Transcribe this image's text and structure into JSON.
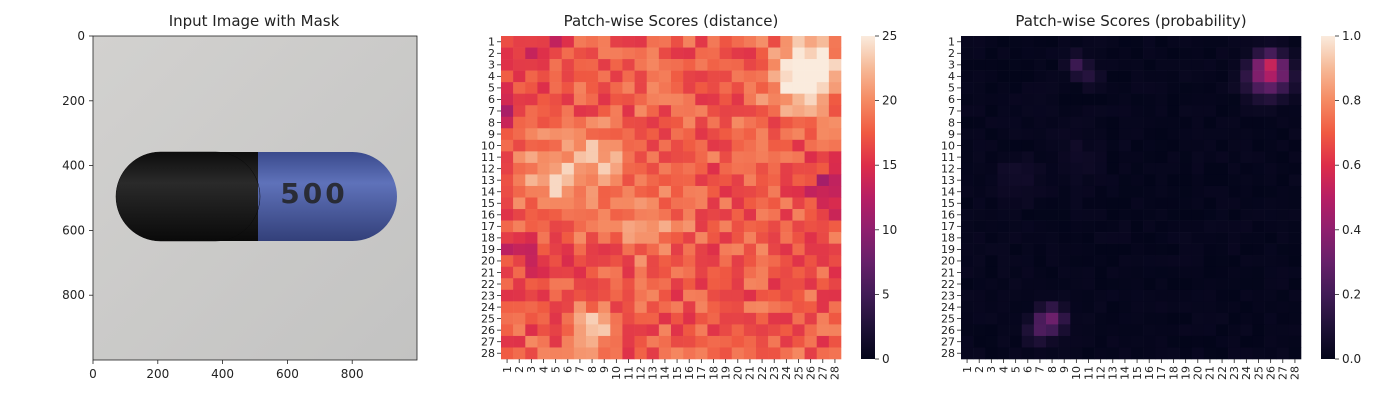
{
  "figure": {
    "panels": [
      {
        "title": "Input Image with Mask",
        "x_ticks": [
          "0",
          "200",
          "400",
          "600",
          "800"
        ],
        "y_ticks": [
          "0",
          "200",
          "400",
          "600",
          "800"
        ],
        "capsule": {
          "left_color": "#1a1a1a",
          "right_color": "#4b5fa6",
          "imprint": "500",
          "background": "#c9c9c6"
        }
      },
      {
        "title": "Patch-wise Scores (distance)",
        "colorbar_ticks": [
          "0",
          "5",
          "10",
          "15",
          "20",
          "25"
        ]
      },
      {
        "title": "Patch-wise Scores (probability)",
        "colorbar_ticks": [
          "0.0",
          "0.2",
          "0.4",
          "0.6",
          "0.8",
          "1.0"
        ]
      }
    ],
    "heatmap_tick_labels": [
      "1",
      "2",
      "3",
      "4",
      "5",
      "6",
      "7",
      "8",
      "9",
      "10",
      "11",
      "12",
      "13",
      "14",
      "15",
      "16",
      "17",
      "18",
      "19",
      "20",
      "21",
      "22",
      "23",
      "24",
      "25",
      "26",
      "27",
      "28"
    ]
  },
  "chart_data": [
    {
      "type": "image",
      "title": "Input Image with Mask",
      "xlim": [
        0,
        1000
      ],
      "ylim": [
        1000,
        0
      ],
      "content": "capsule with imprint 500"
    },
    {
      "type": "heatmap",
      "title": "Patch-wise Scores (distance)",
      "rows": 28,
      "cols": 28,
      "vmin": 0,
      "vmax": 25,
      "colormap": "rocket",
      "base_value": 17.5,
      "hotspots": [
        {
          "row": 3,
          "col": 26,
          "value": 25.0,
          "sigma": 1.8
        },
        {
          "row": 5,
          "col": 25,
          "value": 22.5,
          "sigma": 1.8
        },
        {
          "row": 13,
          "col": 5,
          "value": 22.0,
          "sigma": 2.2
        },
        {
          "row": 11,
          "col": 9,
          "value": 21.0,
          "sigma": 2.0
        },
        {
          "row": 26,
          "col": 8,
          "value": 22.5,
          "sigma": 1.4
        },
        {
          "row": 17,
          "col": 13,
          "value": 20.0,
          "sigma": 2.0
        }
      ],
      "coldspots": [
        {
          "row": 1,
          "col": 4,
          "value": 14.0,
          "sigma": 1.4
        },
        {
          "row": 7,
          "col": 1,
          "value": 14.0,
          "sigma": 1.2
        },
        {
          "row": 19,
          "col": 1,
          "value": 14.5,
          "sigma": 1.2
        },
        {
          "row": 15,
          "col": 28,
          "value": 13.5,
          "sigma": 1.2
        },
        {
          "row": 13,
          "col": 27,
          "value": 14.0,
          "sigma": 1.0
        },
        {
          "row": 20,
          "col": 4,
          "value": 14.5,
          "sigma": 1.0
        }
      ]
    },
    {
      "type": "heatmap",
      "title": "Patch-wise Scores (probability)",
      "rows": 28,
      "cols": 28,
      "vmin": 0,
      "vmax": 1,
      "colormap": "rocket",
      "base_value": 0.01,
      "hotspots": [
        {
          "row": 3,
          "col": 26,
          "value": 0.42,
          "sigma": 0.8
        },
        {
          "row": 4,
          "col": 25,
          "value": 0.22,
          "sigma": 1.0
        },
        {
          "row": 5,
          "col": 26,
          "value": 0.15,
          "sigma": 1.0
        },
        {
          "row": 4,
          "col": 27,
          "value": 0.15,
          "sigma": 0.8
        },
        {
          "row": 3,
          "col": 10,
          "value": 0.18,
          "sigma": 0.6
        },
        {
          "row": 4,
          "col": 11,
          "value": 0.12,
          "sigma": 0.6
        },
        {
          "row": 25,
          "col": 8,
          "value": 0.28,
          "sigma": 0.8
        },
        {
          "row": 26,
          "col": 7,
          "value": 0.18,
          "sigma": 0.8
        },
        {
          "row": 13,
          "col": 5,
          "value": 0.06,
          "sigma": 1.2
        },
        {
          "row": 11,
          "col": 10,
          "value": 0.05,
          "sigma": 1.2
        }
      ],
      "coldspots": []
    }
  ]
}
